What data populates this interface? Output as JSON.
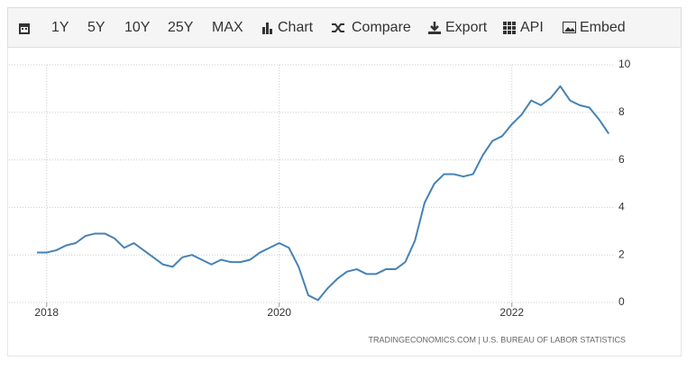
{
  "toolbar": [
    "1Y",
    "5Y",
    "10Y",
    "25Y",
    "MAX",
    "Chart",
    "Compare",
    "Export",
    "API",
    "Embed"
  ],
  "chart_data": {
    "type": "line",
    "categories": [
      null,
      "2018",
      null,
      null,
      null,
      null,
      null,
      null,
      null,
      null,
      null,
      null,
      null,
      null,
      null,
      null,
      null,
      null,
      null,
      null,
      null,
      null,
      null,
      null,
      null,
      "2020",
      null,
      null,
      null,
      null,
      null,
      null,
      null,
      null,
      null,
      null,
      null,
      null,
      null,
      null,
      null,
      null,
      null,
      null,
      null,
      null,
      null,
      null,
      null,
      "2022",
      null,
      null,
      null,
      null,
      null,
      null,
      null,
      null,
      null,
      null
    ],
    "series": [
      {
        "color": "#4682b4",
        "values": [
          2.1,
          2.1,
          2.2,
          2.4,
          2.5,
          2.8,
          2.9,
          2.9,
          2.7,
          2.3,
          2.5,
          2.2,
          1.9,
          1.6,
          1.5,
          1.9,
          2.0,
          1.8,
          1.6,
          1.8,
          1.7,
          1.7,
          1.8,
          2.1,
          2.3,
          2.5,
          2.3,
          1.5,
          0.3,
          0.1,
          0.6,
          1.0,
          1.3,
          1.4,
          1.2,
          1.2,
          1.4,
          1.4,
          1.7,
          2.6,
          4.2,
          5.0,
          5.4,
          5.4,
          5.3,
          5.4,
          6.2,
          6.8,
          7.0,
          7.5,
          7.9,
          8.5,
          8.3,
          8.6,
          9.1,
          8.5,
          8.3,
          8.2,
          7.7,
          7.1
        ]
      }
    ],
    "ylim": [
      0,
      10
    ],
    "yticks": [
      0,
      2,
      4,
      6,
      8,
      10
    ],
    "grid": true,
    "credit": "TRADINGECONOMICS.COM  |  U.S. BUREAU OF LABOR STATISTICS"
  }
}
